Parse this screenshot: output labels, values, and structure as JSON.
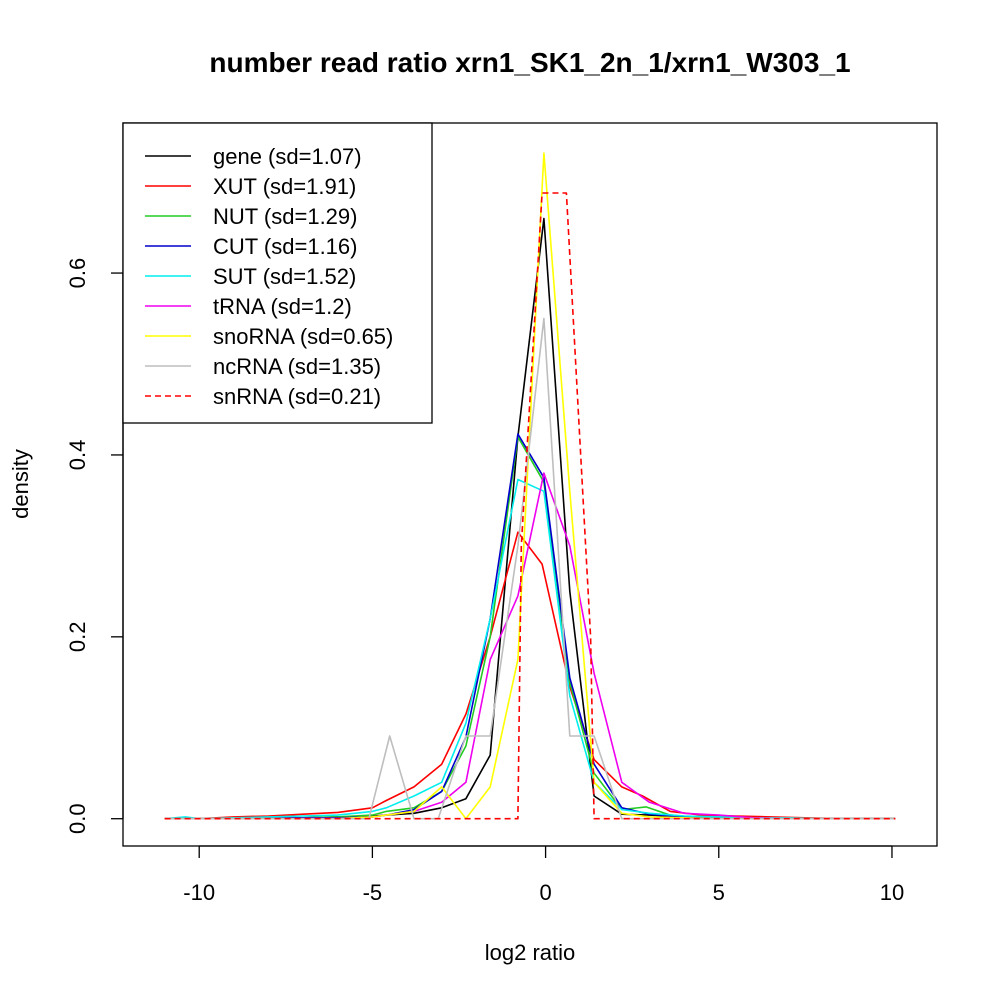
{
  "chart_data": {
    "type": "line",
    "title": "number read ratio xrn1_SK1_2n_1/xrn1_W303_1",
    "xlabel": "log2 ratio",
    "ylabel": "density",
    "xlim": [
      -12.2,
      11.3
    ],
    "ylim": [
      -0.03,
      0.765
    ],
    "x_ticks": [
      -10,
      -5,
      0,
      5,
      10
    ],
    "x_tick_labels": [
      "-10",
      "-5",
      "0",
      "5",
      "10"
    ],
    "y_ticks": [
      0.0,
      0.2,
      0.4,
      0.6
    ],
    "y_tick_labels": [
      "0.0",
      "0.2",
      "0.4",
      "0.6"
    ],
    "grid": false,
    "legend_position": "top-left",
    "series": [
      {
        "name": "gene (sd=1.07)",
        "color": "#000000",
        "dash": "solid",
        "x": [
          -11,
          -10,
          -9,
          -8,
          -7,
          -6,
          -5,
          -4.6,
          -3.8,
          -3,
          -2.3,
          -1.6,
          -0.8,
          -0.05,
          0.7,
          1.4,
          2.2,
          3,
          4,
          5,
          6,
          7,
          8,
          9,
          10.1
        ],
        "y": [
          0,
          0,
          0,
          0.001,
          0.001,
          0.002,
          0.003,
          0.004,
          0.006,
          0.012,
          0.022,
          0.07,
          0.42,
          0.66,
          0.25,
          0.025,
          0.005,
          0.004,
          0.002,
          0.001,
          0.001,
          0.001,
          0,
          0,
          0
        ]
      },
      {
        "name": "XUT (sd=1.91)",
        "color": "#ff0000",
        "dash": "solid",
        "x": [
          -11,
          -10,
          -9,
          -8,
          -7,
          -6,
          -5,
          -4.6,
          -3.8,
          -3,
          -2.3,
          -1.6,
          -0.8,
          -0.1,
          0.7,
          1.4,
          2.2,
          2.8,
          3.6,
          4.5,
          5.5,
          6.5,
          7.5,
          8.5,
          10.1
        ],
        "y": [
          0,
          0,
          0.002,
          0.003,
          0.005,
          0.007,
          0.012,
          0.02,
          0.035,
          0.06,
          0.115,
          0.2,
          0.315,
          0.28,
          0.145,
          0.065,
          0.035,
          0.025,
          0.008,
          0.004,
          0.003,
          0.002,
          0.001,
          0,
          0
        ]
      },
      {
        "name": "NUT (sd=1.29)",
        "color": "#22cc22",
        "dash": "solid",
        "x": [
          -11,
          -10,
          -9,
          -8,
          -7,
          -6,
          -5,
          -4.6,
          -3.8,
          -3,
          -2.3,
          -1.6,
          -0.8,
          -0.05,
          0.7,
          1.4,
          2.2,
          2.9,
          3.6,
          4.5,
          5.5,
          6.5,
          8,
          9,
          10.1
        ],
        "y": [
          0,
          0,
          0,
          0.001,
          0.001,
          0.002,
          0.004,
          0.008,
          0.012,
          0.03,
          0.08,
          0.2,
          0.42,
          0.37,
          0.15,
          0.05,
          0.01,
          0.013,
          0.004,
          0.001,
          0.001,
          0,
          0,
          0,
          0
        ]
      },
      {
        "name": "CUT (sd=1.16)",
        "color": "#0000cc",
        "dash": "solid",
        "x": [
          -11,
          -10,
          -9,
          -8,
          -7,
          -6,
          -5,
          -4.6,
          -3.8,
          -3,
          -2.3,
          -1.6,
          -0.8,
          -0.05,
          0.7,
          1.4,
          2.2,
          3,
          4,
          5,
          6,
          7,
          8,
          9,
          10.1
        ],
        "y": [
          0,
          0,
          0,
          0.001,
          0.001,
          0.001,
          0.002,
          0.004,
          0.01,
          0.03,
          0.09,
          0.22,
          0.423,
          0.375,
          0.155,
          0.06,
          0.012,
          0.005,
          0.002,
          0.001,
          0,
          0,
          0,
          0,
          0
        ]
      },
      {
        "name": "SUT (sd=1.52)",
        "color": "#00eeee",
        "dash": "solid",
        "x": [
          -11,
          -10.4,
          -10,
          -9,
          -8,
          -7,
          -6,
          -5,
          -4.6,
          -3.8,
          -3,
          -2.3,
          -1.6,
          -0.8,
          -0.05,
          0.7,
          1.4,
          2.2,
          3,
          4,
          5,
          6,
          7,
          8,
          9,
          10.1
        ],
        "y": [
          0,
          0.002,
          0,
          0.001,
          0.002,
          0.003,
          0.004,
          0.008,
          0.012,
          0.025,
          0.04,
          0.105,
          0.22,
          0.373,
          0.36,
          0.135,
          0.04,
          0.01,
          0.006,
          0.003,
          0.002,
          0.001,
          0.001,
          0,
          0,
          0
        ]
      },
      {
        "name": "tRNA (sd=1.2)",
        "color": "#ee00ee",
        "dash": "solid",
        "x": [
          -11,
          -10,
          -9,
          -8,
          -7,
          -6,
          -5,
          -4.6,
          -3.8,
          -3,
          -2.3,
          -1.6,
          -0.8,
          -0.05,
          0.7,
          1.4,
          2.2,
          3,
          4,
          5,
          6,
          7,
          8,
          9,
          10.1
        ],
        "y": [
          0,
          0,
          0,
          0,
          0,
          0,
          0.002,
          0.004,
          0.008,
          0.018,
          0.04,
          0.175,
          0.245,
          0.38,
          0.3,
          0.16,
          0.04,
          0.018,
          0.006,
          0.004,
          0.001,
          0,
          0,
          0,
          0
        ]
      },
      {
        "name": "snoRNA (sd=0.65)",
        "color": "#ffff00",
        "dash": "solid",
        "x": [
          -11,
          -10,
          -9,
          -8,
          -7,
          -6,
          -5,
          -4.6,
          -3.8,
          -3,
          -2.3,
          -1.6,
          -0.8,
          -0.05,
          0.7,
          1.4,
          2.2,
          3,
          4,
          5,
          6,
          7,
          8,
          9,
          10.1
        ],
        "y": [
          0,
          0,
          0,
          0,
          0,
          0,
          0.002,
          0.004,
          0.008,
          0.035,
          0.0,
          0.035,
          0.175,
          0.732,
          0.36,
          0.04,
          0.006,
          0.002,
          0.001,
          0,
          0,
          0,
          0,
          0,
          0
        ]
      },
      {
        "name": "ncRNA (sd=1.35)",
        "color": "#bebebe",
        "dash": "solid",
        "x": [
          -11,
          -10,
          -9,
          -8,
          -7,
          -6,
          -5.1,
          -4.5,
          -3.8,
          -3.1,
          -2.3,
          -1.6,
          -0.8,
          -0.05,
          0.7,
          1.4,
          2.2,
          3,
          4,
          5,
          6,
          7,
          8,
          9,
          10.1
        ],
        "y": [
          0,
          0,
          0,
          0,
          0,
          0,
          0,
          0.091,
          0,
          0,
          0.091,
          0.091,
          0.3,
          0.55,
          0.091,
          0.091,
          0,
          0,
          0,
          0,
          0,
          0,
          0,
          0,
          0
        ]
      },
      {
        "name": "snRNA (sd=0.21)",
        "color": "#ff0000",
        "dash": "dashed",
        "x": [
          -11,
          -0.8,
          -0.7,
          -0.1,
          0.6,
          1.3,
          1.4,
          10.1
        ],
        "y": [
          0,
          0,
          0.3,
          0.688,
          0.688,
          0.2,
          0,
          0
        ]
      }
    ]
  }
}
